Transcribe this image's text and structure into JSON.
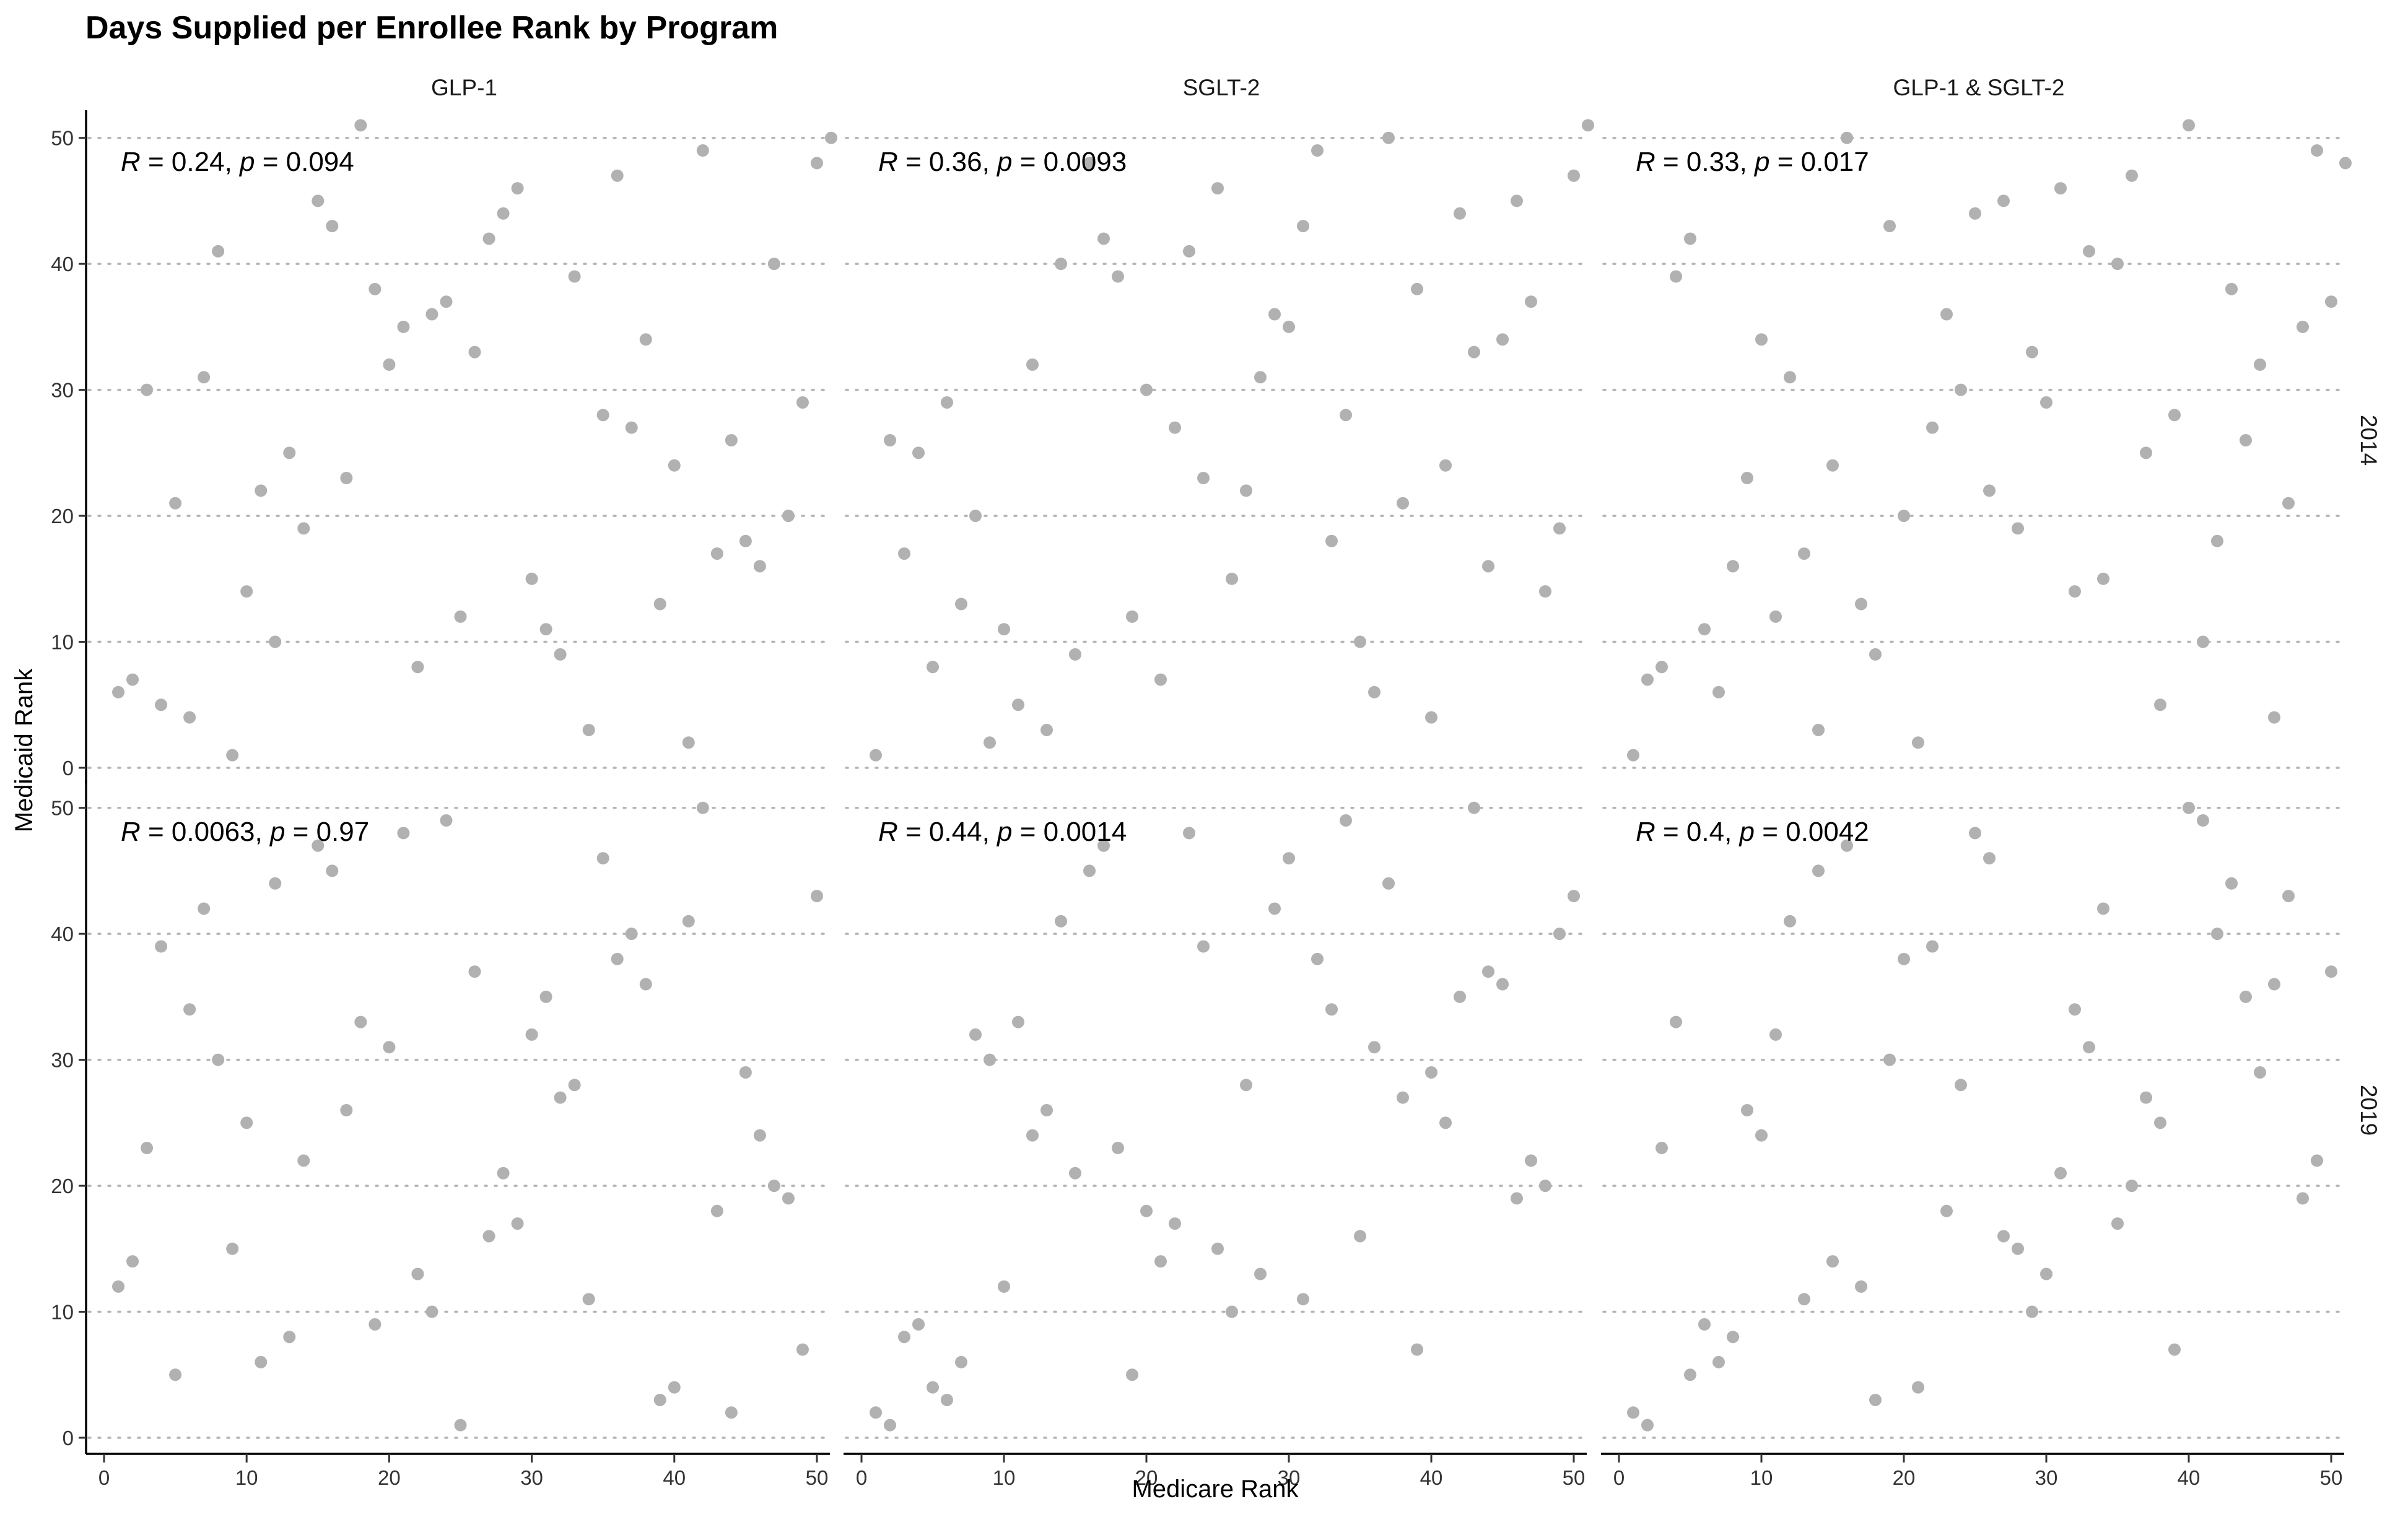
{
  "chart_data": {
    "type": "scatter",
    "title": "Days Supplied per Enrollee Rank by Program",
    "xlabel": "Medicare Rank",
    "ylabel": "Medicaid Rank",
    "xlim": [
      0,
      52
    ],
    "ylim": [
      0,
      52
    ],
    "xticks": [
      0,
      10,
      20,
      30,
      40,
      50
    ],
    "yticks": [
      0,
      10,
      20,
      30,
      40,
      50
    ],
    "grid": "horizontal-dotted",
    "point_color": "#b1b1b1",
    "columns": [
      "GLP-1",
      "SGLT-2",
      "GLP-1 & SGLT-2"
    ],
    "rows": [
      "2014",
      "2019"
    ],
    "panels": [
      {
        "column": "GLP-1",
        "row": "2014",
        "annotation": {
          "r_label": "R",
          "r_value": " = 0.24, ",
          "p_label": "p",
          "p_value": " = 0.094"
        },
        "x": [
          1,
          2,
          3,
          4,
          5,
          6,
          7,
          8,
          9,
          10,
          11,
          12,
          13,
          14,
          15,
          16,
          17,
          18,
          19,
          20,
          21,
          22,
          23,
          24,
          25,
          26,
          27,
          28,
          29,
          30,
          31,
          32,
          33,
          34,
          35,
          36,
          37,
          38,
          39,
          40,
          41,
          42,
          43,
          44,
          45,
          46,
          47,
          48,
          49,
          50,
          51
        ],
        "y": [
          6,
          7,
          30,
          5,
          21,
          4,
          31,
          41,
          1,
          14,
          22,
          10,
          25,
          19,
          45,
          43,
          23,
          51,
          38,
          32,
          35,
          8,
          36,
          37,
          12,
          33,
          42,
          44,
          46,
          15,
          11,
          9,
          39,
          3,
          28,
          47,
          27,
          34,
          13,
          24,
          2,
          49,
          17,
          26,
          18,
          16,
          40,
          20,
          29,
          48,
          50
        ]
      },
      {
        "column": "SGLT-2",
        "row": "2014",
        "annotation": {
          "r_label": "R",
          "r_value": " = 0.36, ",
          "p_label": "p",
          "p_value": " = 0.0093"
        },
        "x": [
          1,
          2,
          3,
          4,
          5,
          6,
          7,
          8,
          9,
          10,
          11,
          12,
          13,
          14,
          15,
          16,
          17,
          18,
          19,
          20,
          21,
          22,
          23,
          24,
          25,
          26,
          27,
          28,
          29,
          30,
          31,
          32,
          33,
          34,
          35,
          36,
          37,
          38,
          39,
          40,
          41,
          42,
          43,
          44,
          45,
          46,
          47,
          48,
          49,
          50,
          51
        ],
        "y": [
          1,
          26,
          17,
          25,
          8,
          29,
          13,
          20,
          2,
          11,
          5,
          32,
          3,
          40,
          9,
          48,
          42,
          39,
          12,
          30,
          7,
          27,
          41,
          23,
          46,
          15,
          22,
          31,
          36,
          35,
          43,
          49,
          18,
          28,
          10,
          6,
          50,
          21,
          38,
          4,
          24,
          44,
          33,
          16,
          34,
          45,
          37,
          14,
          19,
          47,
          51
        ]
      },
      {
        "column": "GLP-1 & SGLT-2",
        "row": "2014",
        "annotation": {
          "r_label": "R",
          "r_value": " = 0.33, ",
          "p_label": "p",
          "p_value": " = 0.017"
        },
        "x": [
          1,
          2,
          3,
          4,
          5,
          6,
          7,
          8,
          9,
          10,
          11,
          12,
          13,
          14,
          15,
          16,
          17,
          18,
          19,
          20,
          21,
          22,
          23,
          24,
          25,
          26,
          27,
          28,
          29,
          30,
          31,
          32,
          33,
          34,
          35,
          36,
          37,
          38,
          39,
          40,
          41,
          42,
          43,
          44,
          45,
          46,
          47,
          48,
          49,
          50,
          51
        ],
        "y": [
          1,
          7,
          8,
          39,
          42,
          11,
          6,
          16,
          23,
          34,
          12,
          31,
          17,
          3,
          24,
          50,
          13,
          9,
          43,
          20,
          2,
          27,
          36,
          30,
          44,
          22,
          45,
          19,
          33,
          29,
          46,
          14,
          41,
          15,
          40,
          47,
          25,
          5,
          28,
          51,
          10,
          18,
          38,
          26,
          32,
          4,
          21,
          35,
          49,
          37,
          48
        ]
      },
      {
        "column": "GLP-1",
        "row": "2019",
        "annotation": {
          "r_label": "R",
          "r_value": " = 0.0063, ",
          "p_label": "p",
          "p_value": " = 0.97"
        },
        "x": [
          1,
          2,
          3,
          4,
          5,
          6,
          7,
          8,
          9,
          10,
          11,
          12,
          13,
          14,
          15,
          16,
          17,
          18,
          19,
          20,
          21,
          22,
          23,
          24,
          25,
          26,
          27,
          28,
          29,
          30,
          31,
          32,
          33,
          34,
          35,
          36,
          37,
          38,
          39,
          40,
          41,
          42,
          43,
          44,
          45,
          46,
          47,
          48,
          49,
          50
        ],
        "y": [
          12,
          14,
          23,
          39,
          5,
          34,
          42,
          30,
          15,
          25,
          6,
          44,
          8,
          22,
          47,
          45,
          26,
          33,
          9,
          31,
          48,
          13,
          10,
          49,
          1,
          37,
          16,
          21,
          17,
          32,
          35,
          27,
          28,
          11,
          46,
          38,
          40,
          36,
          3,
          4,
          41,
          50,
          18,
          2,
          29,
          24,
          20,
          19,
          7,
          43
        ]
      },
      {
        "column": "SGLT-2",
        "row": "2019",
        "annotation": {
          "r_label": "R",
          "r_value": " = 0.44, ",
          "p_label": "p",
          "p_value": " = 0.0014"
        },
        "x": [
          1,
          2,
          3,
          4,
          5,
          6,
          7,
          8,
          9,
          10,
          11,
          12,
          13,
          14,
          15,
          16,
          17,
          18,
          19,
          20,
          21,
          22,
          23,
          24,
          25,
          26,
          27,
          28,
          29,
          30,
          31,
          32,
          33,
          34,
          35,
          36,
          37,
          38,
          39,
          40,
          41,
          42,
          43,
          44,
          45,
          46,
          47,
          48,
          49,
          50
        ],
        "y": [
          2,
          1,
          8,
          9,
          4,
          3,
          6,
          32,
          30,
          12,
          33,
          24,
          26,
          41,
          21,
          45,
          47,
          23,
          5,
          18,
          14,
          17,
          48,
          39,
          15,
          10,
          28,
          13,
          42,
          46,
          11,
          38,
          34,
          49,
          16,
          31,
          44,
          27,
          7,
          29,
          25,
          35,
          50,
          37,
          36,
          19,
          22,
          20,
          40,
          43
        ]
      },
      {
        "column": "GLP-1 & SGLT-2",
        "row": "2019",
        "annotation": {
          "r_label": "R",
          "r_value": " = 0.4, ",
          "p_label": "p",
          "p_value": " = 0.0042"
        },
        "x": [
          1,
          2,
          3,
          4,
          5,
          6,
          7,
          8,
          9,
          10,
          11,
          12,
          13,
          14,
          15,
          16,
          17,
          18,
          19,
          20,
          21,
          22,
          23,
          24,
          25,
          26,
          27,
          28,
          29,
          30,
          31,
          32,
          33,
          34,
          35,
          36,
          37,
          38,
          39,
          40,
          41,
          42,
          43,
          44,
          45,
          46,
          47,
          48,
          49,
          50
        ],
        "y": [
          2,
          1,
          23,
          33,
          5,
          9,
          6,
          8,
          26,
          24,
          32,
          41,
          11,
          45,
          14,
          47,
          12,
          3,
          30,
          38,
          4,
          39,
          18,
          28,
          48,
          46,
          16,
          15,
          10,
          13,
          21,
          34,
          31,
          42,
          17,
          20,
          27,
          25,
          7,
          50,
          49,
          40,
          44,
          35,
          29,
          36,
          43,
          19,
          22,
          37
        ]
      }
    ]
  }
}
